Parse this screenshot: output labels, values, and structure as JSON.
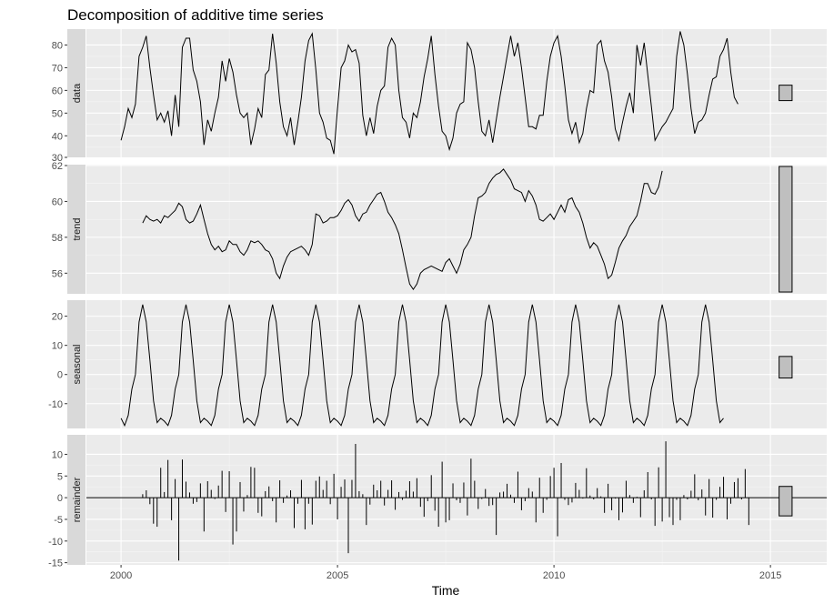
{
  "chart_data": {
    "type": "line",
    "title": "Decomposition of additive time series",
    "xlabel": "Time",
    "xlim": [
      1999.2,
      2016.3
    ],
    "x_ticks": [
      2000,
      2005,
      2010,
      2015
    ],
    "x_tick_labels": [
      "2000",
      "2005",
      "2010",
      "2015"
    ],
    "x_start": 2000.0,
    "x_step": 0.0833333,
    "grid": true,
    "panels": [
      {
        "name": "data",
        "style": "line",
        "ylim": [
          30.5,
          87
        ],
        "y_ticks": [
          30,
          40,
          50,
          60,
          70,
          80
        ],
        "bar_range": [
          55.5,
          62.3
        ],
        "values": [
          38,
          44,
          52,
          48,
          54,
          75,
          79,
          84,
          70,
          58,
          47,
          50,
          46,
          51,
          40,
          58,
          44,
          79,
          83,
          83,
          69,
          64,
          55,
          36,
          47,
          42,
          50,
          57,
          73,
          64,
          74,
          68,
          58,
          50,
          48,
          50,
          36,
          43,
          52,
          48,
          67,
          69,
          85,
          72,
          55,
          44,
          40,
          48,
          36,
          46,
          57,
          73,
          82,
          85,
          69,
          50,
          46,
          39,
          38,
          32,
          52,
          70,
          73,
          80,
          77,
          78,
          72,
          49,
          40,
          48,
          41,
          53,
          60,
          62,
          79,
          83,
          80,
          60,
          48,
          46,
          39,
          50,
          48,
          55,
          66,
          74,
          84,
          67,
          53,
          42,
          40,
          34,
          39,
          50,
          54,
          55,
          81,
          78,
          70,
          55,
          42,
          40,
          47,
          37,
          47,
          57,
          66,
          75,
          84,
          75,
          81,
          70,
          57,
          44,
          44,
          43,
          49,
          49,
          64,
          75,
          81,
          84,
          75,
          62,
          47,
          41,
          46,
          37,
          41,
          52,
          60,
          59,
          80,
          82,
          73,
          68,
          57,
          43,
          38,
          46,
          53,
          59,
          50,
          80,
          71,
          81,
          67,
          53,
          38,
          41,
          44,
          46,
          49,
          52,
          75,
          86,
          80,
          67,
          52,
          41,
          46,
          47,
          50,
          58,
          65,
          66,
          75,
          78,
          83,
          68,
          57,
          54
        ]
      },
      {
        "name": "trend",
        "style": "line",
        "ylim": [
          54.85,
          62.05
        ],
        "y_ticks": [
          56,
          58,
          60,
          62
        ],
        "bar_range": [
          54.95,
          61.95
        ],
        "values": [
          null,
          null,
          null,
          null,
          null,
          null,
          58.8,
          59.2,
          59.0,
          58.9,
          59.0,
          58.8,
          59.2,
          59.1,
          59.3,
          59.5,
          59.9,
          59.7,
          59.0,
          58.8,
          58.9,
          59.3,
          59.8,
          59.0,
          58.2,
          57.6,
          57.3,
          57.5,
          57.2,
          57.3,
          57.8,
          57.6,
          57.6,
          57.2,
          57.0,
          57.3,
          57.8,
          57.7,
          57.8,
          57.6,
          57.3,
          57.2,
          56.8,
          56.0,
          55.7,
          56.4,
          56.9,
          57.2,
          57.3,
          57.4,
          57.5,
          57.3,
          57.0,
          57.6,
          59.3,
          59.2,
          58.8,
          58.9,
          59.1,
          59.1,
          59.2,
          59.5,
          59.9,
          60.1,
          59.8,
          59.2,
          58.9,
          59.3,
          59.4,
          59.8,
          60.1,
          60.4,
          60.5,
          60.0,
          59.4,
          59.1,
          58.7,
          58.2,
          57.3,
          56.3,
          55.4,
          55.1,
          55.4,
          56.0,
          56.2,
          56.3,
          56.4,
          56.3,
          56.2,
          56.1,
          56.6,
          56.8,
          56.4,
          56.0,
          56.5,
          57.3,
          57.6,
          58.0,
          59.2,
          60.2,
          60.3,
          60.5,
          61.0,
          61.3,
          61.5,
          61.6,
          61.8,
          61.5,
          61.2,
          60.7,
          60.6,
          60.5,
          60.0,
          60.6,
          60.3,
          59.8,
          59.0,
          58.9,
          59.1,
          59.3,
          59.0,
          59.4,
          59.8,
          59.4,
          60.1,
          60.2,
          59.7,
          59.4,
          58.8,
          58.0,
          57.4,
          57.7,
          57.5,
          57.0,
          56.5,
          55.7,
          55.9,
          56.6,
          57.4,
          57.8,
          58.1,
          58.6,
          58.9,
          59.2,
          60.0,
          61.0,
          61.0,
          60.5,
          60.4,
          60.8,
          61.7,
          null,
          null,
          null,
          null,
          null,
          null,
          null,
          null,
          null,
          null,
          null,
          null,
          null,
          null,
          null,
          null,
          null,
          null,
          null,
          null,
          null,
          null,
          null,
          null,
          null,
          null,
          null,
          null,
          null
        ]
      },
      {
        "name": "seasonal",
        "style": "line",
        "ylim": [
          -18.5,
          25.5
        ],
        "y_ticks": [
          -10,
          0,
          10,
          20
        ],
        "bar_range": [
          -1.2,
          6.2
        ],
        "values": [
          -15,
          -17.5,
          -14,
          -5,
          0,
          18,
          24,
          18,
          5,
          -9,
          -16.5,
          -15,
          -16,
          -17.5,
          -14,
          -5,
          0,
          18,
          24,
          18,
          5,
          -9,
          -16.5,
          -15,
          -16,
          -17.5,
          -14,
          -5,
          0,
          18,
          24,
          18,
          5,
          -9,
          -16.5,
          -15,
          -16,
          -17.5,
          -14,
          -5,
          0,
          18,
          24,
          18,
          5,
          -9,
          -16.5,
          -15,
          -16,
          -17.5,
          -14,
          -5,
          0,
          18,
          24,
          18,
          5,
          -9,
          -16.5,
          -15,
          -16,
          -17.5,
          -14,
          -5,
          0,
          18,
          24,
          18,
          5,
          -9,
          -16.5,
          -15,
          -16,
          -17.5,
          -14,
          -5,
          0,
          18,
          24,
          18,
          5,
          -9,
          -16.5,
          -15,
          -16,
          -17.5,
          -14,
          -5,
          0,
          18,
          24,
          18,
          5,
          -9,
          -16.5,
          -15,
          -16,
          -17.5,
          -14,
          -5,
          0,
          18,
          24,
          18,
          5,
          -9,
          -16.5,
          -15,
          -16,
          -17.5,
          -14,
          -5,
          0,
          18,
          24,
          18,
          5,
          -9,
          -16.5,
          -15,
          -16,
          -17.5,
          -14,
          -5,
          0,
          18,
          24,
          18,
          5,
          -9,
          -16.5,
          -15,
          -16,
          -17.5,
          -14,
          -5,
          0,
          18,
          24,
          18,
          5,
          -9,
          -16.5,
          -15,
          -16,
          -17.5,
          -14,
          -5,
          0,
          18,
          24,
          18,
          5,
          -9,
          -16.5,
          -15,
          -16,
          -17.5,
          -14,
          -5,
          0,
          18,
          24,
          18,
          5,
          -9,
          -16.5,
          -15
        ]
      },
      {
        "name": "remainder",
        "style": "bar",
        "ylim": [
          -15.5,
          14.5
        ],
        "y_ticks": [
          -15,
          -10,
          -5,
          0,
          5,
          10
        ],
        "bar_range": [
          -4.2,
          2.6
        ],
        "values": [
          null,
          null,
          null,
          null,
          null,
          null,
          0.8,
          1.7,
          -1.5,
          -6.0,
          -6.7,
          6.9,
          1.3,
          8.7,
          -5.2,
          4.3,
          -14.5,
          8.8,
          3.7,
          1.2,
          -1.4,
          -1.0,
          3.3,
          -7.8,
          3.8,
          1.8,
          -0.3,
          2.8,
          6.2,
          -3.3,
          6.1,
          -10.8,
          -7.8,
          3.6,
          -3.2,
          0.6,
          7.1,
          6.9,
          -3.5,
          -4.3,
          1.5,
          2.6,
          -0.8,
          -5.7,
          4.0,
          -1.2,
          0.5,
          1.7,
          -7.0,
          -1.4,
          4.1,
          -7.3,
          -1.4,
          -6.2,
          3.9,
          4.9,
          1.8,
          3.9,
          -1.5,
          5.5,
          -5.0,
          2.5,
          4.2,
          -12.8,
          4.1,
          12.4,
          1.5,
          0.8,
          -6.3,
          -1.6,
          3.0,
          1.7,
          3.9,
          -1.8,
          1.8,
          4.0,
          -2.8,
          1.3,
          -0.5,
          1.6,
          3.8,
          1.4,
          4.5,
          -2.1,
          -4.4,
          -0.8,
          5.2,
          -3.0,
          -6.7,
          8.3,
          -5.7,
          -5.2,
          3.3,
          -0.6,
          -1.2,
          3.5,
          -4.1,
          9.0,
          3.9,
          -2.6,
          -0.3,
          2.0,
          -1.9,
          -1.7,
          -8.6,
          1.2,
          1.4,
          3.2,
          0.7,
          -1.2,
          6.0,
          -2.9,
          -0.8,
          2.2,
          1.4,
          -5.7,
          4.6,
          -3.5,
          -0.5,
          5.0,
          6.9,
          -8.9,
          8.0,
          -0.5,
          -1.7,
          -1.1,
          3.4,
          1.8,
          -0.2,
          6.8,
          0.5,
          -0.4,
          2.2,
          0.3,
          -3.5,
          3.2,
          -2.9,
          -0.2,
          -5.2,
          -3.4,
          3.9,
          0.6,
          -1.2,
          0.2,
          -4.5,
          1.7,
          5.9,
          -0.4,
          -6.5,
          7.0,
          -5.5,
          13.0,
          -4.5,
          -6.3,
          -0.5,
          -5.2,
          0.6,
          -0.4,
          1.6,
          5.4,
          -0.6,
          1.9,
          -4.1,
          4.3,
          -4.6,
          -0.5,
          2.5,
          4.8,
          -5.0,
          -1.4,
          3.6,
          4.5,
          -0.4,
          6.6,
          -6.3,
          null,
          null,
          null,
          null,
          null,
          null
        ]
      }
    ]
  }
}
